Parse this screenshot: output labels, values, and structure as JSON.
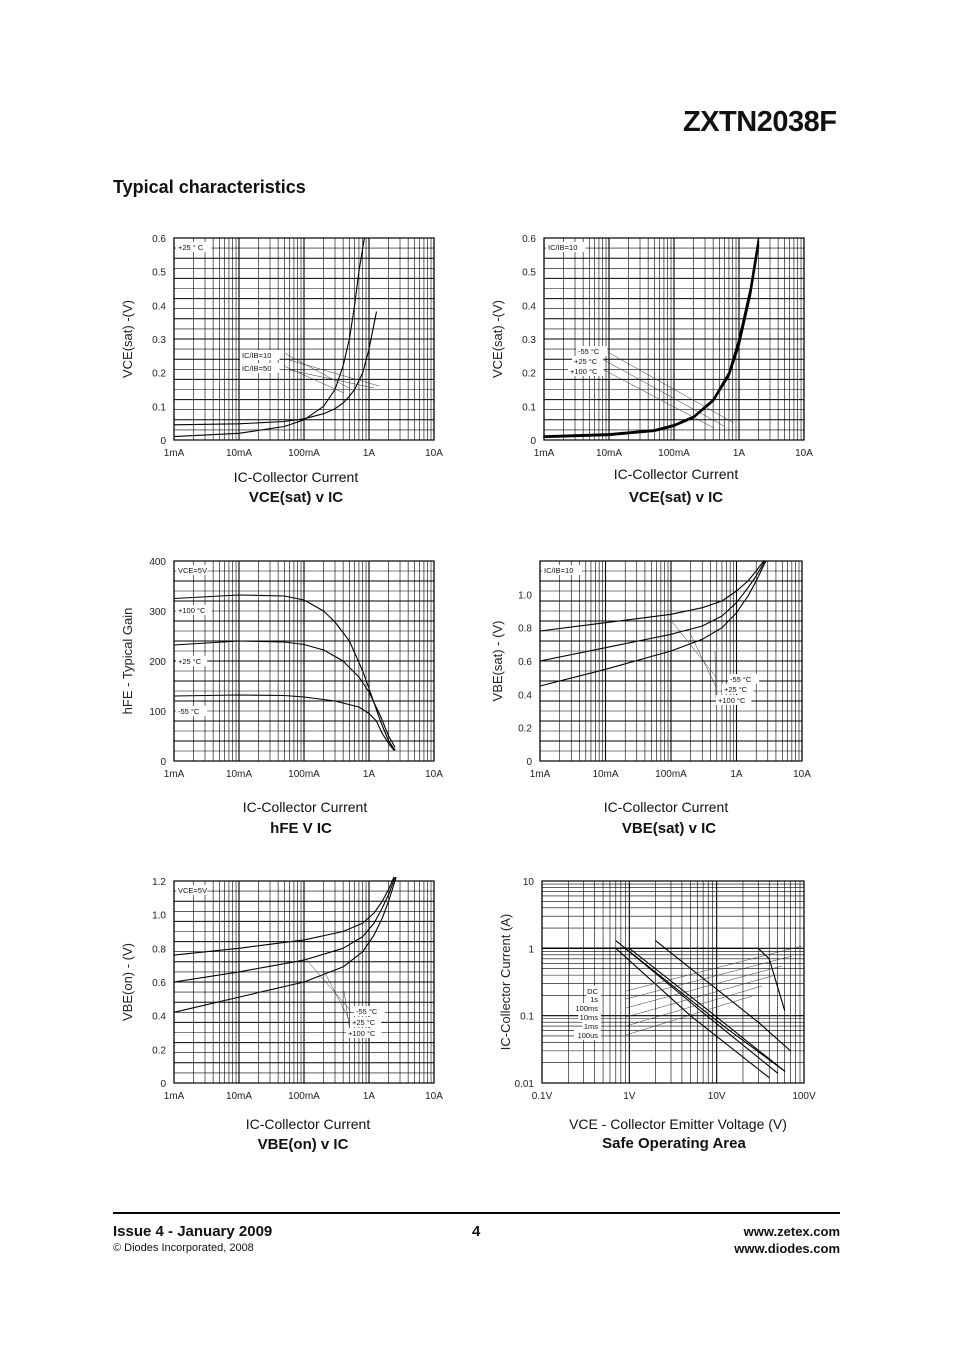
{
  "header": {
    "part_number": "ZXTN2038F"
  },
  "section_title": "Typical characteristics",
  "charts": [
    {
      "id": "c1",
      "title": "VCE(sat) v IC",
      "xlabel": "IC-Collector Current",
      "ylabel": "VCE(sat) -(V)",
      "annotations": [
        "+25 ° C",
        "IC/IB=10",
        "IC/IB=50"
      ]
    },
    {
      "id": "c2",
      "title": "VCE(sat) v IC",
      "xlabel": "IC-Collector Current",
      "ylabel": "VCE(sat) -(V)",
      "annotations": [
        "IC/IB=10",
        "-55 °C",
        "+25 °C",
        "+100 °C"
      ]
    },
    {
      "id": "c3",
      "title": "hFE V IC",
      "xlabel": "IC-Collector Current",
      "ylabel": "hFE - Typical Gain",
      "annotations": [
        "VCE=5V",
        "+100 °C",
        "+25 °C",
        "-55 °C"
      ]
    },
    {
      "id": "c4",
      "title": "VBE(sat) v IC",
      "xlabel": "IC-Collector Current",
      "ylabel": "VBE(sat) - (V)",
      "annotations": [
        "IC/IB=10",
        "-55 °C",
        "+25 °C",
        "+100 °C"
      ]
    },
    {
      "id": "c5",
      "title": "VBE(on) v IC",
      "xlabel": "IC-Collector Current",
      "ylabel": "VBE(on) - (V)",
      "annotations": [
        "VCE=5V",
        "-55 °C",
        "+25 °C",
        "+100 °C"
      ]
    },
    {
      "id": "c6",
      "title": "Safe Operating Area",
      "xlabel": "VCE - Collector Emitter Voltage (V)",
      "ylabel": "IC-Collector Current (A)",
      "annotations": [
        "DC",
        "1s",
        "100ms",
        "10ms",
        "1ms",
        "100us"
      ]
    }
  ],
  "chart_data": [
    {
      "type": "line",
      "title": "VCE(sat) v IC",
      "xlabel": "IC-Collector Current",
      "ylabel": "VCE(sat) -(V)",
      "x_scale": "log",
      "xlim": [
        0.001,
        10
      ],
      "ylim": [
        0,
        0.6
      ],
      "x_tick_labels": [
        "1mA",
        "10mA",
        "100mA",
        "1A",
        "10A"
      ],
      "y_tick_labels": [
        "0",
        "0.1",
        "0.2",
        "0.3",
        "0.4",
        "0.5",
        "0.6"
      ],
      "series": [
        {
          "name": "IC/IB=10",
          "x": [
            0.001,
            0.01,
            0.05,
            0.1,
            0.2,
            0.3,
            0.4,
            0.5,
            0.6,
            0.8,
            1.0,
            1.3
          ],
          "y": [
            0.045,
            0.048,
            0.055,
            0.063,
            0.078,
            0.093,
            0.11,
            0.13,
            0.15,
            0.2,
            0.27,
            0.38
          ]
        },
        {
          "name": "IC/IB=50",
          "x": [
            0.001,
            0.01,
            0.05,
            0.1,
            0.2,
            0.3,
            0.4,
            0.5,
            0.6,
            0.7,
            0.85
          ],
          "y": [
            0.01,
            0.02,
            0.04,
            0.06,
            0.1,
            0.15,
            0.22,
            0.3,
            0.4,
            0.5,
            0.6
          ]
        }
      ]
    },
    {
      "type": "line",
      "title": "VCE(sat) v IC",
      "xlabel": "IC-Collector Current",
      "ylabel": "VCE(sat) -(V)",
      "x_scale": "log",
      "xlim": [
        0.001,
        10
      ],
      "ylim": [
        0,
        0.6
      ],
      "x_tick_labels": [
        "1mA",
        "10mA",
        "100mA",
        "1A",
        "10A"
      ],
      "y_tick_labels": [
        "0",
        "0.1",
        "0.2",
        "0.3",
        "0.4",
        "0.5",
        "0.6"
      ],
      "series": [
        {
          "name": "-55 °C",
          "x": [
            0.001,
            0.01,
            0.05,
            0.1,
            0.2,
            0.4,
            0.7,
            1.0,
            1.5,
            2.0
          ],
          "y": [
            0.012,
            0.018,
            0.03,
            0.045,
            0.07,
            0.12,
            0.2,
            0.3,
            0.45,
            0.6
          ]
        },
        {
          "name": "+25 °C",
          "x": [
            0.001,
            0.01,
            0.05,
            0.1,
            0.2,
            0.4,
            0.7,
            1.0,
            1.5,
            2.0
          ],
          "y": [
            0.01,
            0.016,
            0.028,
            0.043,
            0.068,
            0.118,
            0.195,
            0.29,
            0.44,
            0.59
          ]
        },
        {
          "name": "+100 °C",
          "x": [
            0.001,
            0.01,
            0.05,
            0.1,
            0.2,
            0.4,
            0.7,
            1.0,
            1.5,
            2.0
          ],
          "y": [
            0.008,
            0.014,
            0.026,
            0.041,
            0.066,
            0.115,
            0.19,
            0.28,
            0.43,
            0.58
          ]
        }
      ]
    },
    {
      "type": "line",
      "title": "hFE V IC",
      "xlabel": "IC-Collector Current",
      "ylabel": "hFE - Typical Gain",
      "x_scale": "log",
      "xlim": [
        0.001,
        10
      ],
      "ylim": [
        0,
        400
      ],
      "x_tick_labels": [
        "1mA",
        "10mA",
        "100mA",
        "1A",
        "10A"
      ],
      "y_tick_labels": [
        "0",
        "100",
        "200",
        "300",
        "400"
      ],
      "series": [
        {
          "name": "+100 °C",
          "x": [
            0.001,
            0.01,
            0.05,
            0.1,
            0.2,
            0.3,
            0.5,
            0.8,
            1.0,
            1.5,
            2.0,
            2.5
          ],
          "y": [
            325,
            332,
            330,
            322,
            300,
            278,
            240,
            180,
            145,
            80,
            40,
            22
          ]
        },
        {
          "name": "+25 °C",
          "x": [
            0.001,
            0.01,
            0.05,
            0.1,
            0.2,
            0.4,
            0.7,
            1.0,
            1.5,
            2.0,
            2.5
          ],
          "y": [
            232,
            240,
            238,
            233,
            222,
            200,
            168,
            138,
            90,
            50,
            28
          ]
        },
        {
          "name": "-55 °C",
          "x": [
            0.001,
            0.01,
            0.05,
            0.1,
            0.3,
            0.7,
            1.0,
            1.3,
            1.6,
            2.0,
            2.4
          ],
          "y": [
            130,
            132,
            131,
            128,
            120,
            108,
            95,
            80,
            55,
            35,
            22
          ]
        }
      ]
    },
    {
      "type": "line",
      "title": "VBE(sat) v IC",
      "xlabel": "IC-Collector Current",
      "ylabel": "VBE(sat) - (V)",
      "x_scale": "log",
      "xlim": [
        0.001,
        10
      ],
      "ylim": [
        0,
        1.2
      ],
      "x_tick_labels": [
        "1mA",
        "10mA",
        "100mA",
        "1A",
        "10A"
      ],
      "y_tick_labels": [
        "0",
        "0.2",
        "0.4",
        "0.6",
        "0.8",
        "1.0"
      ],
      "series": [
        {
          "name": "-55 °C",
          "x": [
            0.001,
            0.01,
            0.1,
            0.3,
            0.6,
            1.0,
            1.5,
            2.0,
            2.6
          ],
          "y": [
            0.78,
            0.83,
            0.88,
            0.92,
            0.96,
            1.02,
            1.08,
            1.14,
            1.2
          ]
        },
        {
          "name": "+25 °C",
          "x": [
            0.001,
            0.01,
            0.1,
            0.3,
            0.6,
            1.0,
            1.5,
            2.0,
            2.7
          ],
          "y": [
            0.6,
            0.68,
            0.76,
            0.81,
            0.87,
            0.95,
            1.04,
            1.11,
            1.2
          ]
        },
        {
          "name": "+100 °C",
          "x": [
            0.001,
            0.01,
            0.1,
            0.3,
            0.6,
            1.0,
            1.5,
            2.0,
            2.8
          ],
          "y": [
            0.45,
            0.55,
            0.66,
            0.73,
            0.8,
            0.89,
            0.99,
            1.08,
            1.2
          ]
        }
      ]
    },
    {
      "type": "line",
      "title": "VBE(on) v IC",
      "xlabel": "IC-Collector Current",
      "ylabel": "VBE(on) - (V)",
      "x_scale": "log",
      "xlim": [
        0.001,
        10
      ],
      "ylim": [
        0,
        1.2
      ],
      "x_tick_labels": [
        "1mA",
        "10mA",
        "100mA",
        "1A",
        "10A"
      ],
      "y_tick_labels": [
        "0",
        "0.2",
        "0.4",
        "0.6",
        "0.8",
        "1.0",
        "1.2"
      ],
      "series": [
        {
          "name": "-55 °C",
          "x": [
            0.001,
            0.01,
            0.1,
            0.4,
            0.8,
            1.2,
            1.6,
            2.0,
            2.4
          ],
          "y": [
            0.76,
            0.8,
            0.85,
            0.9,
            0.95,
            1.01,
            1.08,
            1.15,
            1.22
          ]
        },
        {
          "name": "+25 °C",
          "x": [
            0.001,
            0.01,
            0.1,
            0.4,
            0.8,
            1.2,
            1.6,
            2.0,
            2.5
          ],
          "y": [
            0.6,
            0.66,
            0.73,
            0.8,
            0.87,
            0.95,
            1.04,
            1.12,
            1.22
          ]
        },
        {
          "name": "+100 °C",
          "x": [
            0.001,
            0.01,
            0.1,
            0.4,
            0.8,
            1.2,
            1.6,
            2.0,
            2.6
          ],
          "y": [
            0.42,
            0.51,
            0.6,
            0.69,
            0.78,
            0.88,
            0.98,
            1.08,
            1.22
          ]
        }
      ]
    },
    {
      "type": "line",
      "title": "Safe Operating Area",
      "xlabel": "VCE - Collector Emitter Voltage (V)",
      "ylabel": "IC-Collector Current (A)",
      "x_scale": "log",
      "y_scale": "log",
      "xlim": [
        0.1,
        100
      ],
      "ylim": [
        0.01,
        10
      ],
      "x_tick_labels": [
        "0.1V",
        "1V",
        "10V",
        "100V"
      ],
      "y_tick_labels": [
        "0.01",
        "0.1",
        "1",
        "10"
      ],
      "series": [
        {
          "name": "DC",
          "x": [
            0.1,
            0.7,
            5,
            40
          ],
          "y": [
            1,
            1,
            0.1,
            0.012
          ]
        },
        {
          "name": "1s",
          "x": [
            0.1,
            0.9,
            6,
            50
          ],
          "y": [
            1,
            1,
            0.13,
            0.014
          ]
        },
        {
          "name": "100ms",
          "x": [
            0.1,
            1.0,
            8,
            60
          ],
          "y": [
            1,
            1,
            0.12,
            0.015
          ]
        },
        {
          "name": "10ms",
          "x": [
            0.7,
            12,
            60
          ],
          "y": [
            1.3,
            0.07,
            0.015
          ]
        },
        {
          "name": "1ms",
          "x": [
            2,
            30,
            70
          ],
          "y": [
            1.3,
            0.08,
            0.03
          ]
        },
        {
          "name": "100us",
          "x": [
            0.1,
            30,
            40,
            60
          ],
          "y": [
            1,
            1,
            0.7,
            0.12
          ]
        }
      ]
    }
  ],
  "footer": {
    "issue": "Issue 4 - January 2009",
    "copyright": "© Diodes Incorporated, 2008",
    "page": "4",
    "website1": "www.zetex.com",
    "website2": "www.diodes.com"
  }
}
